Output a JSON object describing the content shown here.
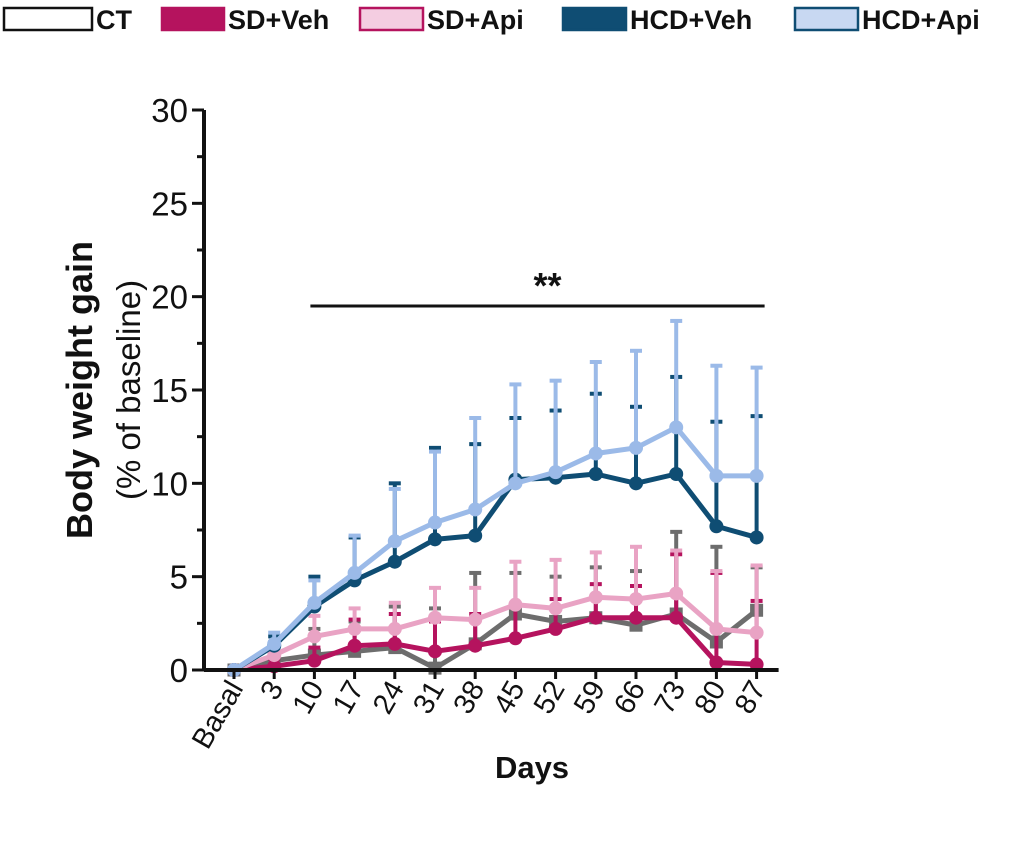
{
  "chart_data": {
    "type": "line",
    "xlabel": "Days",
    "ylabel": "Body weight gain",
    "ylabel_sub": "(% of baseline)",
    "ylim": [
      0,
      30
    ],
    "yticks": [
      0,
      5,
      10,
      15,
      20,
      25,
      30
    ],
    "categories": [
      "Basal",
      "3",
      "10",
      "17",
      "24",
      "31",
      "38",
      "45",
      "52",
      "59",
      "66",
      "73",
      "80",
      "87"
    ],
    "legend_position": "top",
    "significance": {
      "label": "**",
      "from_category": "10",
      "to_category": "87",
      "y": 19.5
    },
    "series": [
      {
        "name": "CT",
        "color": "#6d6d6d",
        "legend_fill": "#ffffff",
        "legend_border": "#111111",
        "marker": "square",
        "values": [
          0,
          0.5,
          0.8,
          1.0,
          1.2,
          0.1,
          1.4,
          3.0,
          2.6,
          2.8,
          2.4,
          3.0,
          1.5,
          3.2
        ],
        "errors": [
          0,
          0.6,
          1.4,
          1.6,
          2.2,
          3.2,
          3.8,
          2.2,
          2.4,
          2.7,
          2.9,
          4.4,
          5.1,
          2.3
        ]
      },
      {
        "name": "SD+Veh",
        "color": "#b5135e",
        "legend_fill": "#b5135e",
        "legend_border": "#b5135e",
        "marker": "circle",
        "values": [
          0,
          0.2,
          0.5,
          1.3,
          1.4,
          1.0,
          1.3,
          1.7,
          2.2,
          2.8,
          2.8,
          2.8,
          0.4,
          0.3
        ],
        "errors": [
          0,
          0.4,
          0.7,
          1.4,
          1.6,
          1.6,
          1.7,
          1.8,
          1.6,
          1.8,
          1.7,
          3.4,
          4.8,
          3.4
        ]
      },
      {
        "name": "SD+Api",
        "color": "#e9a3c4",
        "legend_fill": "#f4cde1",
        "legend_border": "#b5135e",
        "marker": "circle",
        "values": [
          0,
          0.8,
          1.8,
          2.2,
          2.2,
          2.8,
          2.7,
          3.5,
          3.3,
          3.9,
          3.8,
          4.1,
          2.2,
          2.0
        ],
        "errors": [
          0,
          0.7,
          1.1,
          1.1,
          1.4,
          1.6,
          1.7,
          2.3,
          2.6,
          2.4,
          2.8,
          2.3,
          3.1,
          3.6
        ]
      },
      {
        "name": "HCD+Veh",
        "color": "#0f4d73",
        "legend_fill": "#0f4d73",
        "legend_border": "#0f4d73",
        "marker": "circle",
        "values": [
          0,
          1.3,
          3.4,
          4.8,
          5.8,
          7.0,
          7.2,
          10.2,
          10.3,
          10.5,
          10.0,
          10.5,
          7.7,
          7.1
        ],
        "errors": [
          0,
          0.5,
          1.6,
          2.3,
          4.2,
          4.9,
          4.9,
          3.3,
          3.6,
          4.3,
          4.1,
          5.2,
          5.6,
          6.5
        ]
      },
      {
        "name": "HCD+Api",
        "color": "#9bbae8",
        "legend_fill": "#c8d8f2",
        "legend_border": "#0f4d73",
        "marker": "circle",
        "values": [
          0,
          1.4,
          3.6,
          5.2,
          6.9,
          7.9,
          8.6,
          10.0,
          10.6,
          11.6,
          11.9,
          13.0,
          10.4,
          10.4
        ],
        "errors": [
          0,
          0.6,
          1.2,
          2.0,
          2.8,
          3.8,
          4.9,
          5.3,
          4.9,
          4.9,
          5.2,
          5.7,
          5.9,
          5.8
        ]
      }
    ]
  }
}
